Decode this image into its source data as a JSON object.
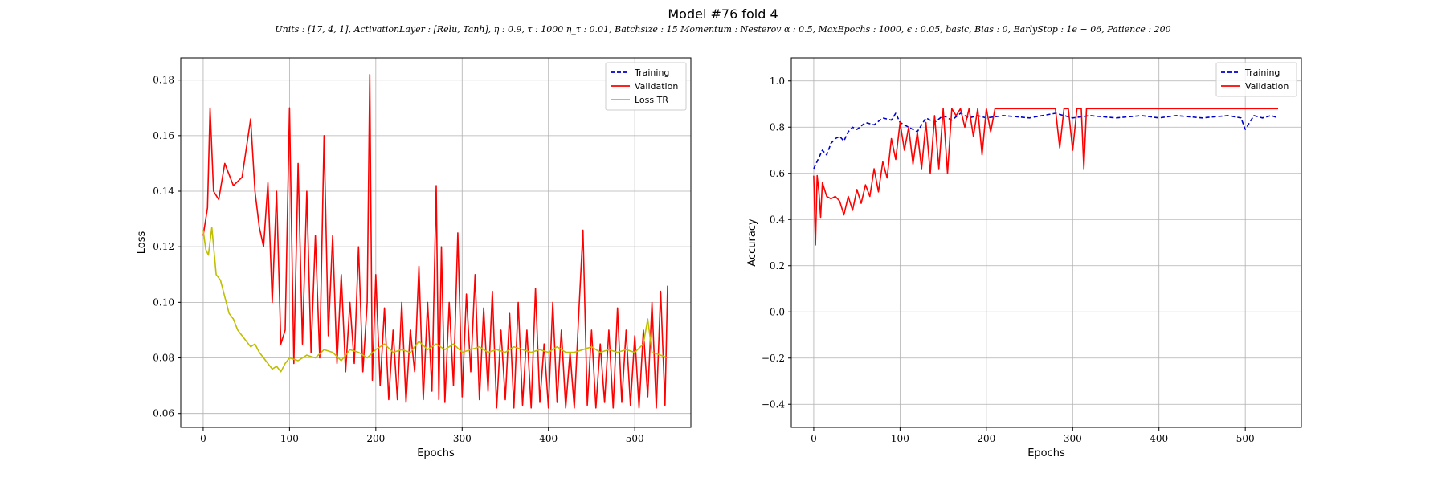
{
  "figure": {
    "title": "Model #76 fold 4",
    "subtitle": "Units : [17, 4, 1], ActivationLayer : [Relu, Tanh], η : 0.9, τ : 1000 η_τ : 0.01, Batchsize : 15 Momentum : Nesterov α : 0.5, MaxEpochs : 1000, ϵ : 0.05, basic, Bias : 0, EarlyStop : 1e − 06, Patience : 200"
  },
  "chart_data": [
    {
      "type": "line",
      "xlabel": "Epochs",
      "ylabel": "Loss",
      "xlim": [
        -26,
        565
      ],
      "ylim": [
        0.055,
        0.188
      ],
      "xticks": [
        0,
        100,
        200,
        300,
        400,
        500
      ],
      "yticks": [
        0.06,
        0.08,
        0.1,
        0.12,
        0.14,
        0.16,
        0.18
      ],
      "ytick_labels": [
        "0.06",
        "0.08",
        "0.10",
        "0.12",
        "0.14",
        "0.16",
        "0.18"
      ],
      "grid": true,
      "legend": "top-right",
      "series": [
        {
          "name": "Training",
          "color": "#0000cc",
          "dash": "dashed",
          "x": [],
          "y": []
        },
        {
          "name": "Validation",
          "color": "#ff0000",
          "dash": "solid",
          "x": [
            0,
            5,
            8,
            12,
            18,
            25,
            35,
            45,
            55,
            60,
            65,
            70,
            75,
            80,
            85,
            90,
            95,
            100,
            105,
            110,
            115,
            120,
            125,
            130,
            135,
            140,
            145,
            150,
            155,
            160,
            165,
            170,
            175,
            180,
            185,
            190,
            193,
            196,
            200,
            205,
            210,
            215,
            220,
            225,
            230,
            235,
            240,
            245,
            250,
            255,
            260,
            265,
            270,
            273,
            276,
            280,
            285,
            290,
            295,
            300,
            305,
            310,
            315,
            320,
            325,
            330,
            335,
            340,
            345,
            350,
            355,
            360,
            365,
            370,
            375,
            380,
            385,
            390,
            395,
            400,
            405,
            410,
            415,
            420,
            425,
            430,
            435,
            440,
            445,
            450,
            455,
            460,
            465,
            470,
            475,
            480,
            485,
            490,
            495,
            500,
            505,
            510,
            515,
            520,
            525,
            530,
            535,
            538
          ],
          "y": [
            0.124,
            0.134,
            0.17,
            0.14,
            0.137,
            0.15,
            0.142,
            0.145,
            0.166,
            0.14,
            0.127,
            0.12,
            0.143,
            0.1,
            0.14,
            0.085,
            0.09,
            0.17,
            0.078,
            0.15,
            0.085,
            0.14,
            0.082,
            0.124,
            0.08,
            0.16,
            0.088,
            0.124,
            0.078,
            0.11,
            0.075,
            0.1,
            0.078,
            0.12,
            0.075,
            0.1,
            0.182,
            0.072,
            0.11,
            0.07,
            0.098,
            0.065,
            0.09,
            0.065,
            0.1,
            0.064,
            0.09,
            0.075,
            0.113,
            0.065,
            0.1,
            0.068,
            0.142,
            0.065,
            0.12,
            0.064,
            0.1,
            0.07,
            0.125,
            0.066,
            0.103,
            0.075,
            0.11,
            0.065,
            0.098,
            0.068,
            0.104,
            0.062,
            0.09,
            0.065,
            0.096,
            0.062,
            0.1,
            0.063,
            0.09,
            0.062,
            0.105,
            0.064,
            0.085,
            0.062,
            0.1,
            0.064,
            0.09,
            0.062,
            0.082,
            0.062,
            0.095,
            0.126,
            0.063,
            0.09,
            0.062,
            0.085,
            0.064,
            0.09,
            0.062,
            0.098,
            0.064,
            0.09,
            0.063,
            0.088,
            0.062,
            0.09,
            0.066,
            0.1,
            0.062,
            0.104,
            0.063,
            0.106
          ]
        },
        {
          "name": "Loss TR",
          "color": "#bfbf00",
          "dash": "solid",
          "x": [
            0,
            3,
            6,
            10,
            15,
            20,
            25,
            30,
            35,
            40,
            45,
            50,
            55,
            60,
            65,
            70,
            75,
            80,
            85,
            90,
            95,
            100,
            110,
            120,
            130,
            140,
            150,
            160,
            170,
            180,
            190,
            200,
            210,
            220,
            230,
            240,
            250,
            260,
            270,
            280,
            290,
            300,
            310,
            320,
            330,
            340,
            350,
            360,
            370,
            380,
            390,
            400,
            410,
            420,
            430,
            440,
            450,
            460,
            470,
            480,
            490,
            500,
            510,
            515,
            520,
            530,
            538
          ],
          "y": [
            0.126,
            0.119,
            0.117,
            0.127,
            0.11,
            0.108,
            0.102,
            0.096,
            0.094,
            0.09,
            0.088,
            0.086,
            0.084,
            0.085,
            0.082,
            0.08,
            0.078,
            0.076,
            0.077,
            0.075,
            0.078,
            0.08,
            0.079,
            0.081,
            0.08,
            0.083,
            0.082,
            0.079,
            0.083,
            0.082,
            0.08,
            0.083,
            0.085,
            0.082,
            0.083,
            0.082,
            0.086,
            0.083,
            0.085,
            0.083,
            0.085,
            0.082,
            0.083,
            0.084,
            0.082,
            0.083,
            0.082,
            0.084,
            0.083,
            0.082,
            0.083,
            0.082,
            0.084,
            0.082,
            0.082,
            0.083,
            0.084,
            0.082,
            0.083,
            0.082,
            0.083,
            0.082,
            0.085,
            0.094,
            0.082,
            0.081,
            0.08
          ]
        }
      ]
    },
    {
      "type": "line",
      "xlabel": "Epochs",
      "ylabel": "Accuracy",
      "xlim": [
        -26,
        565
      ],
      "ylim": [
        -0.5,
        1.1
      ],
      "xticks": [
        0,
        100,
        200,
        300,
        400,
        500
      ],
      "yticks": [
        -0.4,
        -0.2,
        0.0,
        0.2,
        0.4,
        0.6,
        0.8,
        1.0
      ],
      "ytick_labels": [
        "−0.4",
        "−0.2",
        "0.0",
        "0.2",
        "0.4",
        "0.6",
        "0.8",
        "1.0"
      ],
      "grid": true,
      "legend": "top-right",
      "series": [
        {
          "name": "Training",
          "color": "#0000cc",
          "dash": "dashed",
          "x": [
            0,
            5,
            10,
            15,
            20,
            25,
            30,
            35,
            40,
            45,
            50,
            60,
            70,
            80,
            90,
            95,
            100,
            110,
            120,
            130,
            140,
            150,
            160,
            170,
            180,
            190,
            200,
            220,
            250,
            280,
            300,
            320,
            350,
            380,
            400,
            420,
            450,
            480,
            495,
            500,
            510,
            520,
            530,
            538
          ],
          "y": [
            0.62,
            0.66,
            0.7,
            0.68,
            0.73,
            0.75,
            0.76,
            0.74,
            0.78,
            0.8,
            0.79,
            0.82,
            0.81,
            0.84,
            0.83,
            0.86,
            0.82,
            0.8,
            0.78,
            0.84,
            0.82,
            0.85,
            0.83,
            0.86,
            0.84,
            0.85,
            0.84,
            0.85,
            0.84,
            0.86,
            0.84,
            0.85,
            0.84,
            0.85,
            0.84,
            0.85,
            0.84,
            0.85,
            0.84,
            0.79,
            0.85,
            0.84,
            0.85,
            0.84
          ]
        },
        {
          "name": "Validation",
          "color": "#ff0000",
          "dash": "solid",
          "x": [
            0,
            2,
            4,
            6,
            8,
            10,
            15,
            20,
            25,
            30,
            35,
            40,
            45,
            50,
            55,
            60,
            65,
            70,
            75,
            80,
            85,
            90,
            95,
            100,
            105,
            110,
            115,
            120,
            125,
            130,
            135,
            140,
            145,
            150,
            155,
            160,
            165,
            170,
            175,
            180,
            185,
            190,
            195,
            200,
            205,
            210,
            220,
            250,
            280,
            285,
            290,
            295,
            300,
            305,
            310,
            313,
            316,
            320,
            340,
            400,
            450,
            500,
            538
          ],
          "y": [
            0.59,
            0.29,
            0.59,
            0.52,
            0.41,
            0.56,
            0.5,
            0.49,
            0.5,
            0.48,
            0.42,
            0.5,
            0.44,
            0.53,
            0.47,
            0.55,
            0.5,
            0.62,
            0.52,
            0.65,
            0.58,
            0.75,
            0.66,
            0.82,
            0.7,
            0.8,
            0.64,
            0.78,
            0.62,
            0.82,
            0.6,
            0.85,
            0.62,
            0.88,
            0.6,
            0.88,
            0.85,
            0.88,
            0.8,
            0.88,
            0.76,
            0.88,
            0.68,
            0.88,
            0.78,
            0.88,
            0.88,
            0.88,
            0.88,
            0.71,
            0.88,
            0.88,
            0.7,
            0.88,
            0.88,
            0.62,
            0.88,
            0.88,
            0.88,
            0.88,
            0.88,
            0.88,
            0.88
          ]
        }
      ]
    }
  ]
}
